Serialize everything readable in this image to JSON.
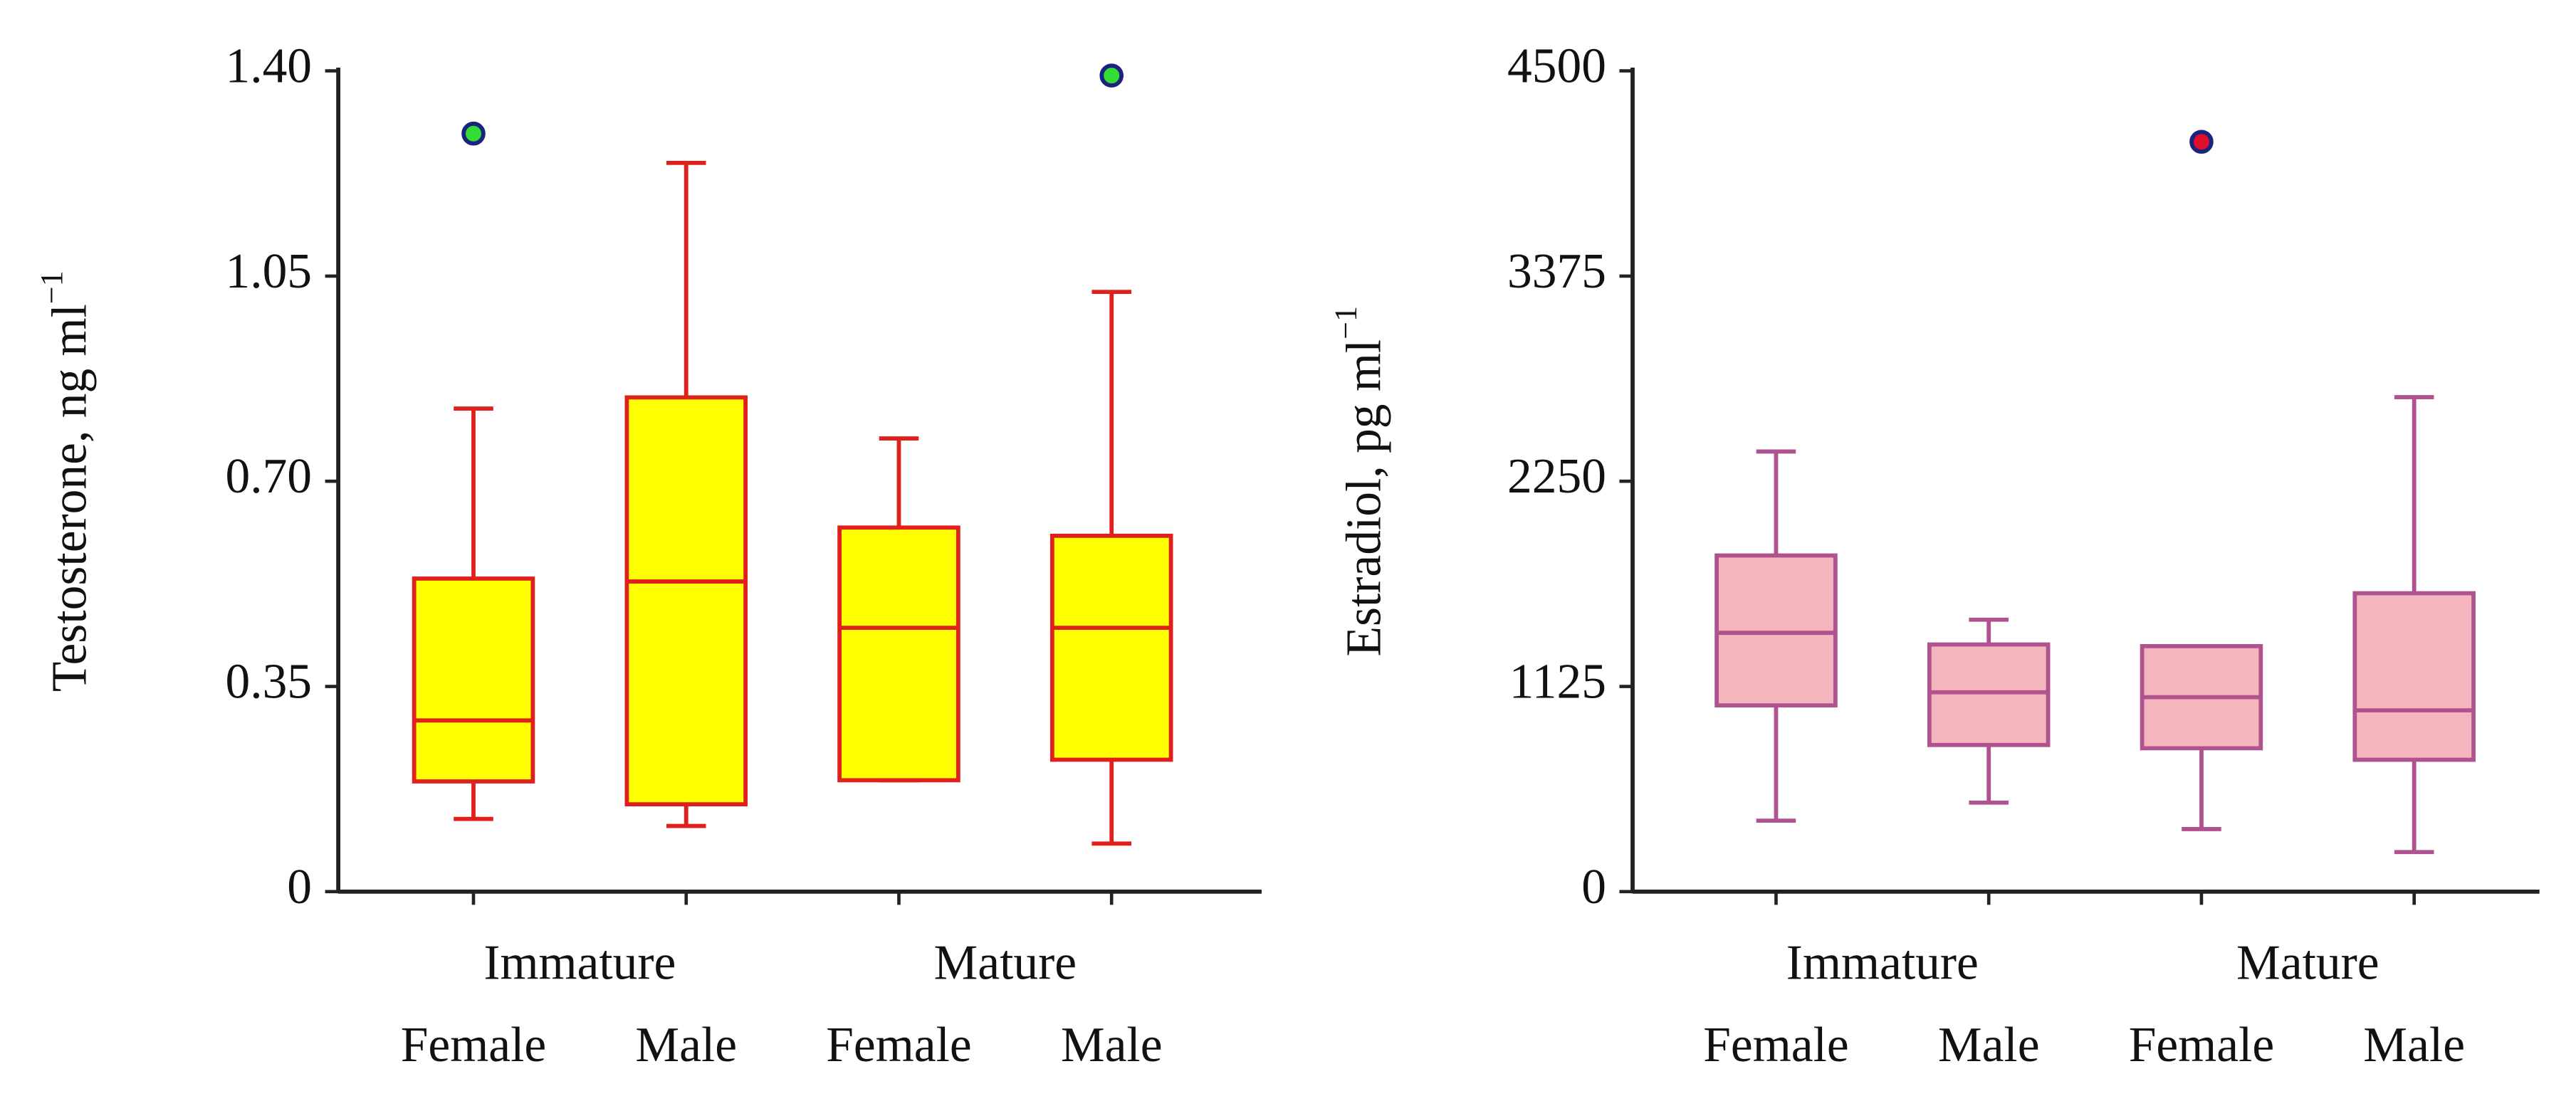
{
  "chart_data": [
    {
      "type": "box",
      "y_label": "Testosterone, ng ml",
      "y_label_sup": "−1",
      "groups": [
        "Immature",
        "Mature"
      ],
      "categories": [
        "Female",
        "Male",
        "Female",
        "Male"
      ],
      "box_fill": "#ffff00",
      "box_stroke": "#e0201c",
      "outlier_fill": "#33dd33",
      "outlier_stroke": "#1a237e",
      "ylim": [
        0,
        1.4
      ],
      "yticks": [
        0,
        0.35,
        {
          "value": 0.7,
          "label": "0.70"
        },
        1.05,
        {
          "value": 1.4,
          "label": "1.40"
        }
      ],
      "boxes": [
        {
          "min": 0.124,
          "q1": 0.188,
          "median": 0.292,
          "q3": 0.534,
          "max": 0.824,
          "outliers": [
            1.293
          ]
        },
        {
          "min": 0.112,
          "q1": 0.149,
          "median": 0.529,
          "q3": 0.843,
          "max": 1.243,
          "outliers": []
        },
        {
          "min": 0.19,
          "q1": 0.19,
          "median": 0.45,
          "q3": 0.621,
          "max": 0.773,
          "outliers": []
        },
        {
          "min": 0.082,
          "q1": 0.225,
          "median": 0.45,
          "q3": 0.607,
          "max": 1.023,
          "outliers": [
            1.392
          ]
        }
      ]
    },
    {
      "type": "box",
      "y_label": "Estradiol, pg ml",
      "y_label_sup": "−1",
      "groups": [
        "Immature",
        "Mature"
      ],
      "categories": [
        "Female",
        "Male",
        "Female",
        "Male"
      ],
      "box_fill": "#f4b6bc",
      "box_stroke": "#b0528f",
      "outlier_fill": "#e0102a",
      "outlier_stroke": "#1a237e",
      "ylim": [
        0,
        4500
      ],
      "yticks": [
        0,
        1125,
        2250,
        3375,
        4500
      ],
      "boxes": [
        {
          "min": 389,
          "q1": 1021,
          "median": 1419,
          "q3": 1843,
          "max": 2413,
          "outliers": []
        },
        {
          "min": 488,
          "q1": 804,
          "median": 1093,
          "q3": 1355,
          "max": 1491,
          "outliers": []
        },
        {
          "min": 343,
          "q1": 786,
          "median": 1066,
          "q3": 1346,
          "max": 1346,
          "outliers": [
            4111
          ]
        },
        {
          "min": 217,
          "q1": 723,
          "median": 994,
          "q3": 1636,
          "max": 2711,
          "outliers": []
        }
      ]
    }
  ]
}
